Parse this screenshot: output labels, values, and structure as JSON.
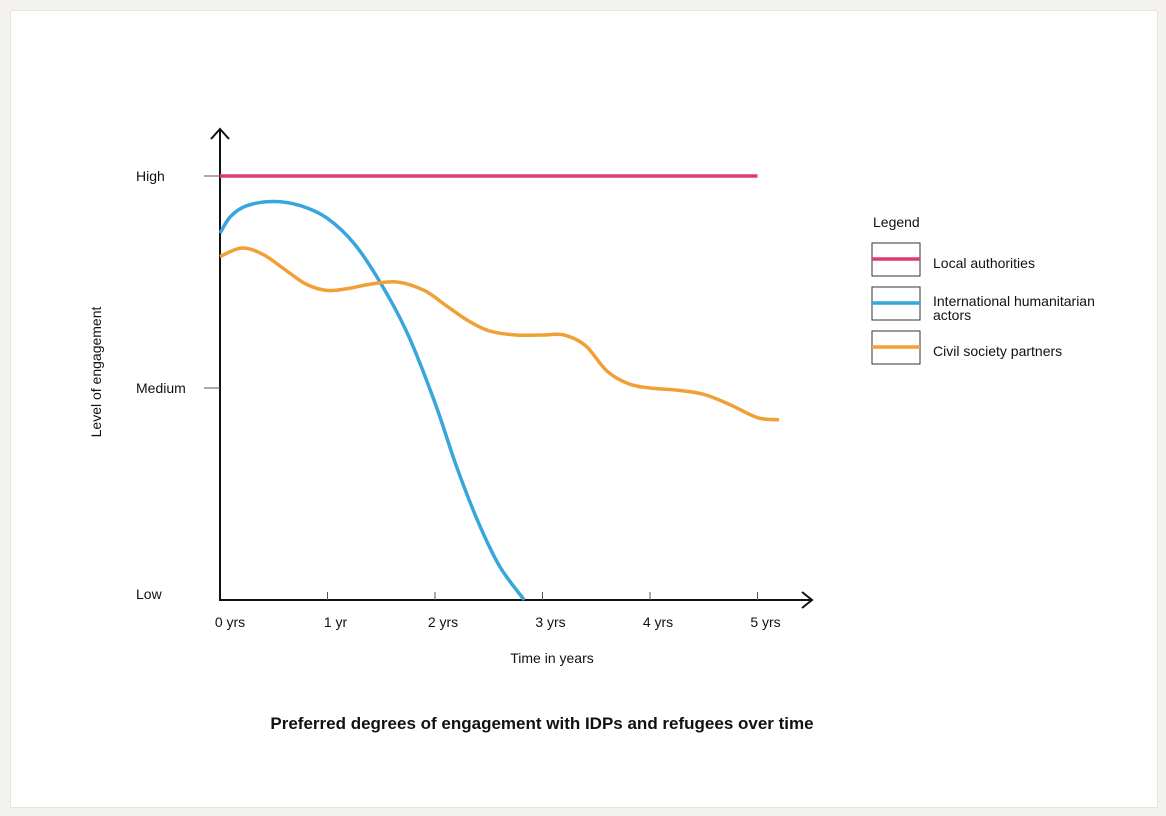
{
  "chart_data": {
    "type": "line",
    "title": "Preferred degrees of engagement with IDPs and refugees over time",
    "xlabel": "Time in years",
    "ylabel": "Level of engagement",
    "x_tick_labels": [
      "0 yrs",
      "1 yr",
      "2 yrs",
      "3 yrs",
      "4 yrs",
      "5 yrs"
    ],
    "x_tick_values": [
      0,
      1,
      2,
      3,
      4,
      5
    ],
    "y_tick_labels": [
      "Low",
      "Medium",
      "High"
    ],
    "y_tick_values": [
      0,
      1,
      2
    ],
    "xlim": [
      0,
      5.4
    ],
    "ylim": [
      0,
      2.2
    ],
    "grid": false,
    "legend": {
      "title": "Legend",
      "placement": "right"
    },
    "series": [
      {
        "name": "Local authorities",
        "color": "#e03a6c",
        "x": [
          0,
          1,
          2,
          3,
          4,
          5
        ],
        "y": [
          2.0,
          2.0,
          2.0,
          2.0,
          2.0,
          2.0
        ]
      },
      {
        "name_lines": [
          "International humanitarian",
          "actors"
        ],
        "name": "International humanitarian actors",
        "color": "#37a6db",
        "x": [
          0,
          0.1,
          0.25,
          0.5,
          0.75,
          1.0,
          1.25,
          1.5,
          1.75,
          2.0,
          2.2,
          2.4,
          2.6,
          2.83
        ],
        "y": [
          1.73,
          1.81,
          1.86,
          1.88,
          1.86,
          1.8,
          1.68,
          1.49,
          1.25,
          0.93,
          0.63,
          0.37,
          0.16,
          0.0
        ]
      },
      {
        "name": "Civil society partners",
        "color": "#f0a035",
        "x": [
          0,
          0.2,
          0.4,
          0.6,
          0.8,
          1.0,
          1.2,
          1.4,
          1.65,
          1.9,
          2.1,
          2.3,
          2.5,
          2.75,
          3.0,
          3.2,
          3.4,
          3.6,
          3.8,
          4.0,
          4.25,
          4.5,
          4.75,
          5.0,
          5.2
        ],
        "y": [
          1.62,
          1.66,
          1.63,
          1.56,
          1.49,
          1.46,
          1.47,
          1.49,
          1.5,
          1.46,
          1.39,
          1.32,
          1.27,
          1.25,
          1.25,
          1.25,
          1.2,
          1.08,
          1.02,
          1.0,
          0.99,
          0.97,
          0.92,
          0.86,
          0.85
        ]
      }
    ]
  }
}
